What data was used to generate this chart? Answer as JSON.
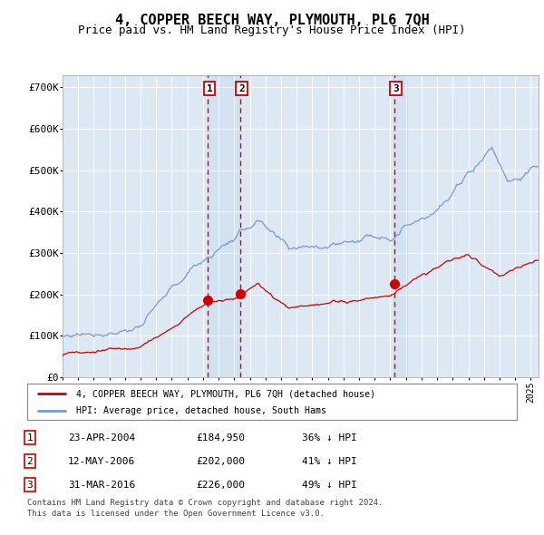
{
  "title": "4, COPPER BEECH WAY, PLYMOUTH, PL6 7QH",
  "subtitle": "Price paid vs. HM Land Registry's House Price Index (HPI)",
  "title_fontsize": 11,
  "subtitle_fontsize": 9,
  "ylabel_ticks": [
    "£0",
    "£100K",
    "£200K",
    "£300K",
    "£400K",
    "£500K",
    "£600K",
    "£700K"
  ],
  "ytick_values": [
    0,
    100000,
    200000,
    300000,
    400000,
    500000,
    600000,
    700000
  ],
  "ylim": [
    0,
    730000
  ],
  "xlim_start": 1995.0,
  "xlim_end": 2025.5,
  "plot_bg_color": "#dce9f5",
  "grid_color": "#ffffff",
  "red_line_color": "#cc0000",
  "blue_line_color": "#7799cc",
  "purchase_dates": [
    2004.31,
    2006.37,
    2016.25
  ],
  "purchase_prices": [
    184950,
    202000,
    226000
  ],
  "purchase_labels": [
    "1",
    "2",
    "3"
  ],
  "vline_color": "#dd0000",
  "legend_red_label": "4, COPPER BEECH WAY, PLYMOUTH, PL6 7QH (detached house)",
  "legend_blue_label": "HPI: Average price, detached house, South Hams",
  "table_data": [
    [
      "1",
      "23-APR-2004",
      "£184,950",
      "36% ↓ HPI"
    ],
    [
      "2",
      "12-MAY-2006",
      "£202,000",
      "41% ↓ HPI"
    ],
    [
      "3",
      "31-MAR-2016",
      "£226,000",
      "49% ↓ HPI"
    ]
  ],
  "footnote1": "Contains HM Land Registry data © Crown copyright and database right 2024.",
  "footnote2": "This data is licensed under the Open Government Licence v3.0.",
  "box_color": "#cc0000"
}
